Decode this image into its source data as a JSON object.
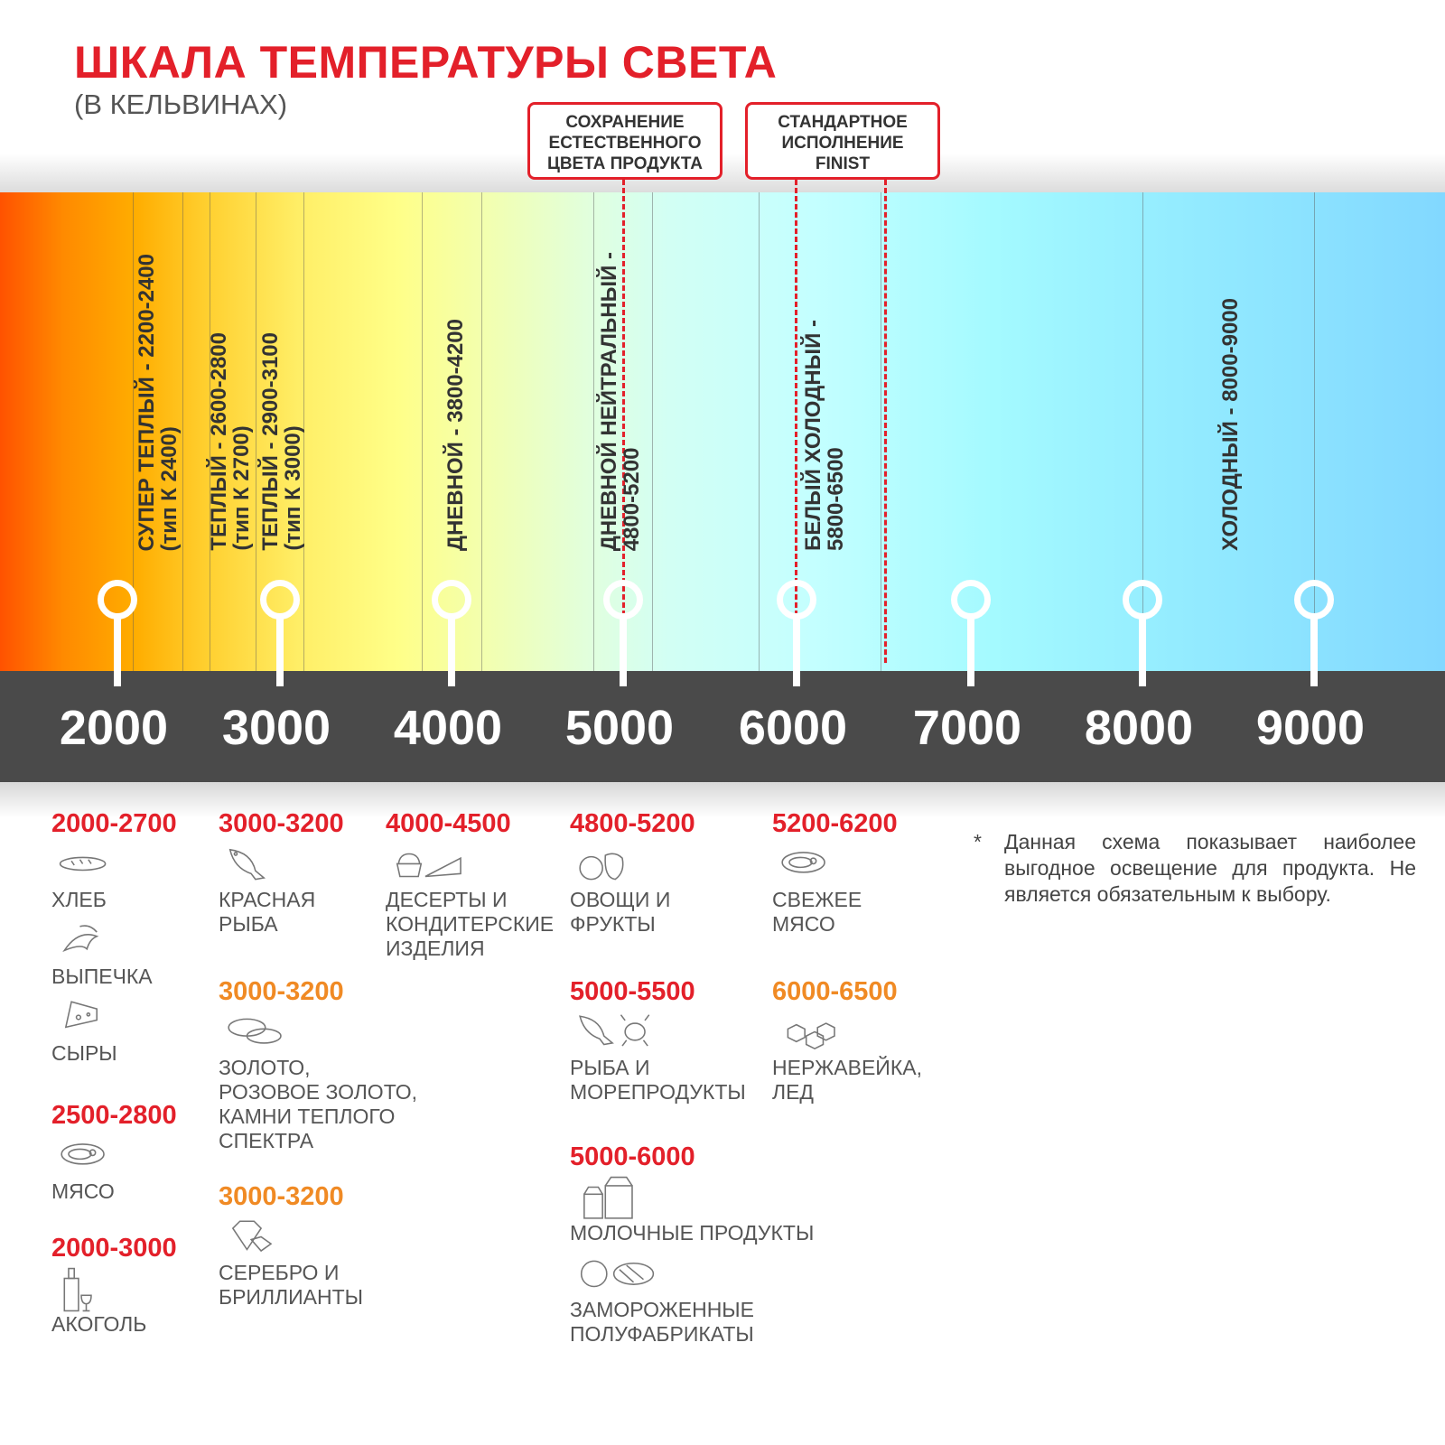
{
  "title": "ШКАЛА ТЕМПЕРАТУРЫ СВЕТА",
  "subtitle": "(В КЕЛЬВИНАХ)",
  "callouts": [
    {
      "text": "СОХРАНЕНИЕ\nЕСТЕСТВЕННОГО\nЦВЕТА ПРОДУКТА"
    },
    {
      "text": "СТАНДАРТНОЕ\nИСПОЛНЕНИЕ\nFINIST"
    }
  ],
  "zones": [
    {
      "text": "СУПЕР ТЕПЛЫЙ - 2200-2400\n(тип К 2400)"
    },
    {
      "text": "ТЕПЛЫЙ - 2600-2800\n(тип К 2700)"
    },
    {
      "text": "ТЕПЛЫЙ - 2900-3100\n(тип К 3000)"
    },
    {
      "text": "ДНЕВНОЙ - 3800-4200"
    },
    {
      "text": "ДНЕВНОЙ НЕЙТРАЛЬНЫЙ -\n4800-5200"
    },
    {
      "text": "БЕЛЫЙ ХОЛОДНЫЙ -\n5800-6500"
    },
    {
      "text": "ХОЛОДНЫЙ - 8000-9000"
    }
  ],
  "scale": [
    "2000",
    "3000",
    "4000",
    "5000",
    "6000",
    "7000",
    "8000",
    "9000"
  ],
  "colors": {
    "red": "#e3202a",
    "orange": "#f08a24",
    "dark": "#4a4a4a"
  },
  "groups": [
    {
      "range": "2000-2700",
      "color": "red",
      "items": [
        {
          "label": "ХЛЕБ",
          "icon": "bread-icon"
        },
        {
          "label": "ВЫПЕЧКА",
          "icon": "croissant-icon"
        },
        {
          "label": "СЫРЫ",
          "icon": "cheese-icon"
        }
      ]
    },
    {
      "range": "2500-2800",
      "color": "red",
      "items": [
        {
          "label": "МЯСО",
          "icon": "steak-icon"
        }
      ]
    },
    {
      "range": "2000-3000",
      "color": "red",
      "items": [
        {
          "label": "АКОГОЛЬ",
          "icon": "wine-bottle-icon"
        }
      ]
    },
    {
      "range": "3000-3200",
      "color": "red",
      "items": [
        {
          "label": "КРАСНАЯ\nРЫБА",
          "icon": "fish-icon"
        }
      ]
    },
    {
      "range": "3000-3200",
      "color": "orange",
      "items": [
        {
          "label": "ЗОЛОТО,\nРОЗОВОЕ ЗОЛОТО,\nКАМНИ ТЕПЛОГО\nСПЕКТРА",
          "icon": "rings-icon"
        }
      ]
    },
    {
      "range": "3000-3200",
      "color": "orange",
      "items": [
        {
          "label": "СЕРЕБРО И\nБРИЛЛИАНТЫ",
          "icon": "diamond-icon"
        }
      ]
    },
    {
      "range": "4000-4500",
      "color": "red",
      "items": [
        {
          "label": "ДЕСЕРТЫ И\nКОНДИТЕРСКИЕ\nИЗДЕЛИЯ",
          "icon": "cake-icon"
        }
      ]
    },
    {
      "range": "4800-5200",
      "color": "red",
      "items": [
        {
          "label": "ОВОЩИ И\nФРУКТЫ",
          "icon": "vegetables-icon"
        }
      ]
    },
    {
      "range": "5000-5500",
      "color": "red",
      "items": [
        {
          "label": "РЫБА И\nМОРЕПРОДУКТЫ",
          "icon": "seafood-icon"
        }
      ]
    },
    {
      "range": "5000-6000",
      "color": "red",
      "items": [
        {
          "label": "МОЛОЧНЫЕ ПРОДУКТЫ",
          "icon": "milk-icon"
        },
        {
          "label": "ЗАМОРОЖЕННЫЕ\nПОЛУФАБРИКАТЫ",
          "icon": "frozen-food-icon"
        }
      ]
    },
    {
      "range": "5200-6200",
      "color": "red",
      "items": [
        {
          "label": "СВЕЖЕЕ\nМЯСО",
          "icon": "steak-icon"
        }
      ]
    },
    {
      "range": "6000-6500",
      "color": "orange",
      "items": [
        {
          "label": "НЕРЖАВЕЙКА,\nЛЕД",
          "icon": "ice-cubes-icon"
        }
      ]
    }
  ],
  "note": {
    "star": "*",
    "text": "Данная схема показывает наиболее выгодное освещение для продукта. Не является обязательным к выбору."
  }
}
